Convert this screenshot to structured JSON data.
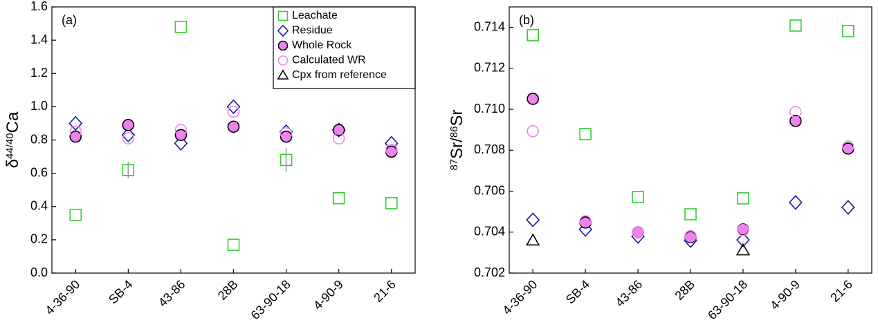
{
  "chart_data": [
    {
      "type": "scatter",
      "panel_label": "(a)",
      "y_label": {
        "prefix": "δ",
        "sup": "44/40",
        "main": "Ca"
      },
      "categories": [
        "4-36-90",
        "SB-4",
        "43-86",
        "28B",
        "63-90-18",
        "4-90-9",
        "21-6"
      ],
      "ylim": [
        0,
        1.6
      ],
      "yticks": [
        {
          "value": 0,
          "label": "0.0"
        },
        0.2,
        0.4,
        0.6,
        0.8,
        {
          "value": 1,
          "label": "1.0"
        },
        1.2,
        1.4,
        1.6
      ],
      "legend": "upper right",
      "series": [
        {
          "name": "Leachate",
          "marker": "square",
          "color": "#33cc33",
          "fill": "none",
          "values": [
            0.35,
            0.62,
            1.48,
            0.17,
            0.68,
            0.45,
            0.42
          ],
          "errors": [
            null,
            0.05,
            null,
            null,
            0.07,
            null,
            null
          ],
          "error_color": "#999999"
        },
        {
          "name": "Residue",
          "marker": "diamond",
          "color": "#1a1aa6",
          "fill": "none",
          "values": [
            0.9,
            0.83,
            0.78,
            1.0,
            0.85,
            0.86,
            0.78
          ]
        },
        {
          "name": "Whole Rock",
          "marker": "circle",
          "color": "#000000",
          "fill": "#ee82ee",
          "values": [
            0.82,
            0.89,
            0.83,
            0.88,
            0.82,
            0.86,
            0.73
          ]
        },
        {
          "name": "Calculated WR",
          "marker": "circle",
          "color": "#ee88ee",
          "fill": "none",
          "values": [
            0.85,
            0.81,
            0.86,
            0.97,
            0.84,
            0.81,
            0.74
          ]
        },
        {
          "name": "Cpx from reference",
          "marker": "triangle",
          "color": "#000000",
          "fill": "none",
          "values": [
            null,
            null,
            null,
            null,
            null,
            null,
            null
          ]
        }
      ]
    },
    {
      "type": "scatter",
      "panel_label": "(b)",
      "y_label": {
        "sup1": "87",
        "main1": "Sr/",
        "sup2": "86",
        "main2": "Sr"
      },
      "categories": [
        "4-36-90",
        "SB-4",
        "43-86",
        "28B",
        "63-90-18",
        "4-90-9",
        "21-6"
      ],
      "ylim": [
        0.702,
        0.715
      ],
      "yticks": [
        0.702,
        0.704,
        0.706,
        0.708,
        {
          "value": 0.71,
          "label": "0.710"
        },
        0.712,
        0.714
      ],
      "series": [
        {
          "marker": "square",
          "color": "#33cc33",
          "fill": "none",
          "values": [
            0.71362,
            0.70879,
            0.70572,
            0.70487,
            0.70565,
            0.71409,
            0.71382
          ]
        },
        {
          "marker": "diamond",
          "color": "#1a1aa6",
          "fill": "none",
          "values": [
            0.7046,
            0.70413,
            0.70379,
            0.70359,
            0.70362,
            0.70545,
            0.70521
          ]
        },
        {
          "marker": "circle",
          "color": "#000000",
          "fill": "#ee82ee",
          "values": [
            0.71051,
            0.70447,
            0.70399,
            0.70376,
            0.70413,
            0.70943,
            0.70808
          ]
        },
        {
          "marker": "circle",
          "color": "#ee88ee",
          "fill": "none",
          "values": [
            0.70893,
            0.70453,
            0.70399,
            0.7038,
            0.7041,
            0.70987,
            0.70818
          ]
        },
        {
          "marker": "triangle",
          "color": "#000000",
          "fill": "none",
          "values": [
            0.70359,
            null,
            null,
            null,
            0.70311,
            null,
            null
          ]
        }
      ]
    }
  ]
}
